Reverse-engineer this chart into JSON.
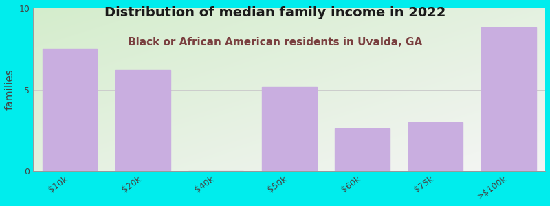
{
  "categories": [
    "$10k",
    "$20k",
    "$40k",
    "$50k",
    "$60k",
    "$75k",
    ">$100k"
  ],
  "values": [
    7.5,
    6.2,
    0,
    5.2,
    2.6,
    3.0,
    8.8
  ],
  "bar_color": "#c9aee0",
  "bar_edgecolor": "#c9aee0",
  "title": "Distribution of median family income in 2022",
  "subtitle": "Black or African American residents in Uvalda, GA",
  "ylabel": "families",
  "ylim": [
    0,
    10
  ],
  "yticks": [
    0,
    5,
    10
  ],
  "background_color": "#00eded",
  "plot_bg_top_left": "#d4edcc",
  "plot_bg_bottom_right": "#f5f5f5",
  "title_fontsize": 14,
  "subtitle_fontsize": 11,
  "subtitle_color": "#7a4040",
  "ylabel_fontsize": 11,
  "tick_label_fontsize": 9,
  "title_color": "#1a1a1a"
}
